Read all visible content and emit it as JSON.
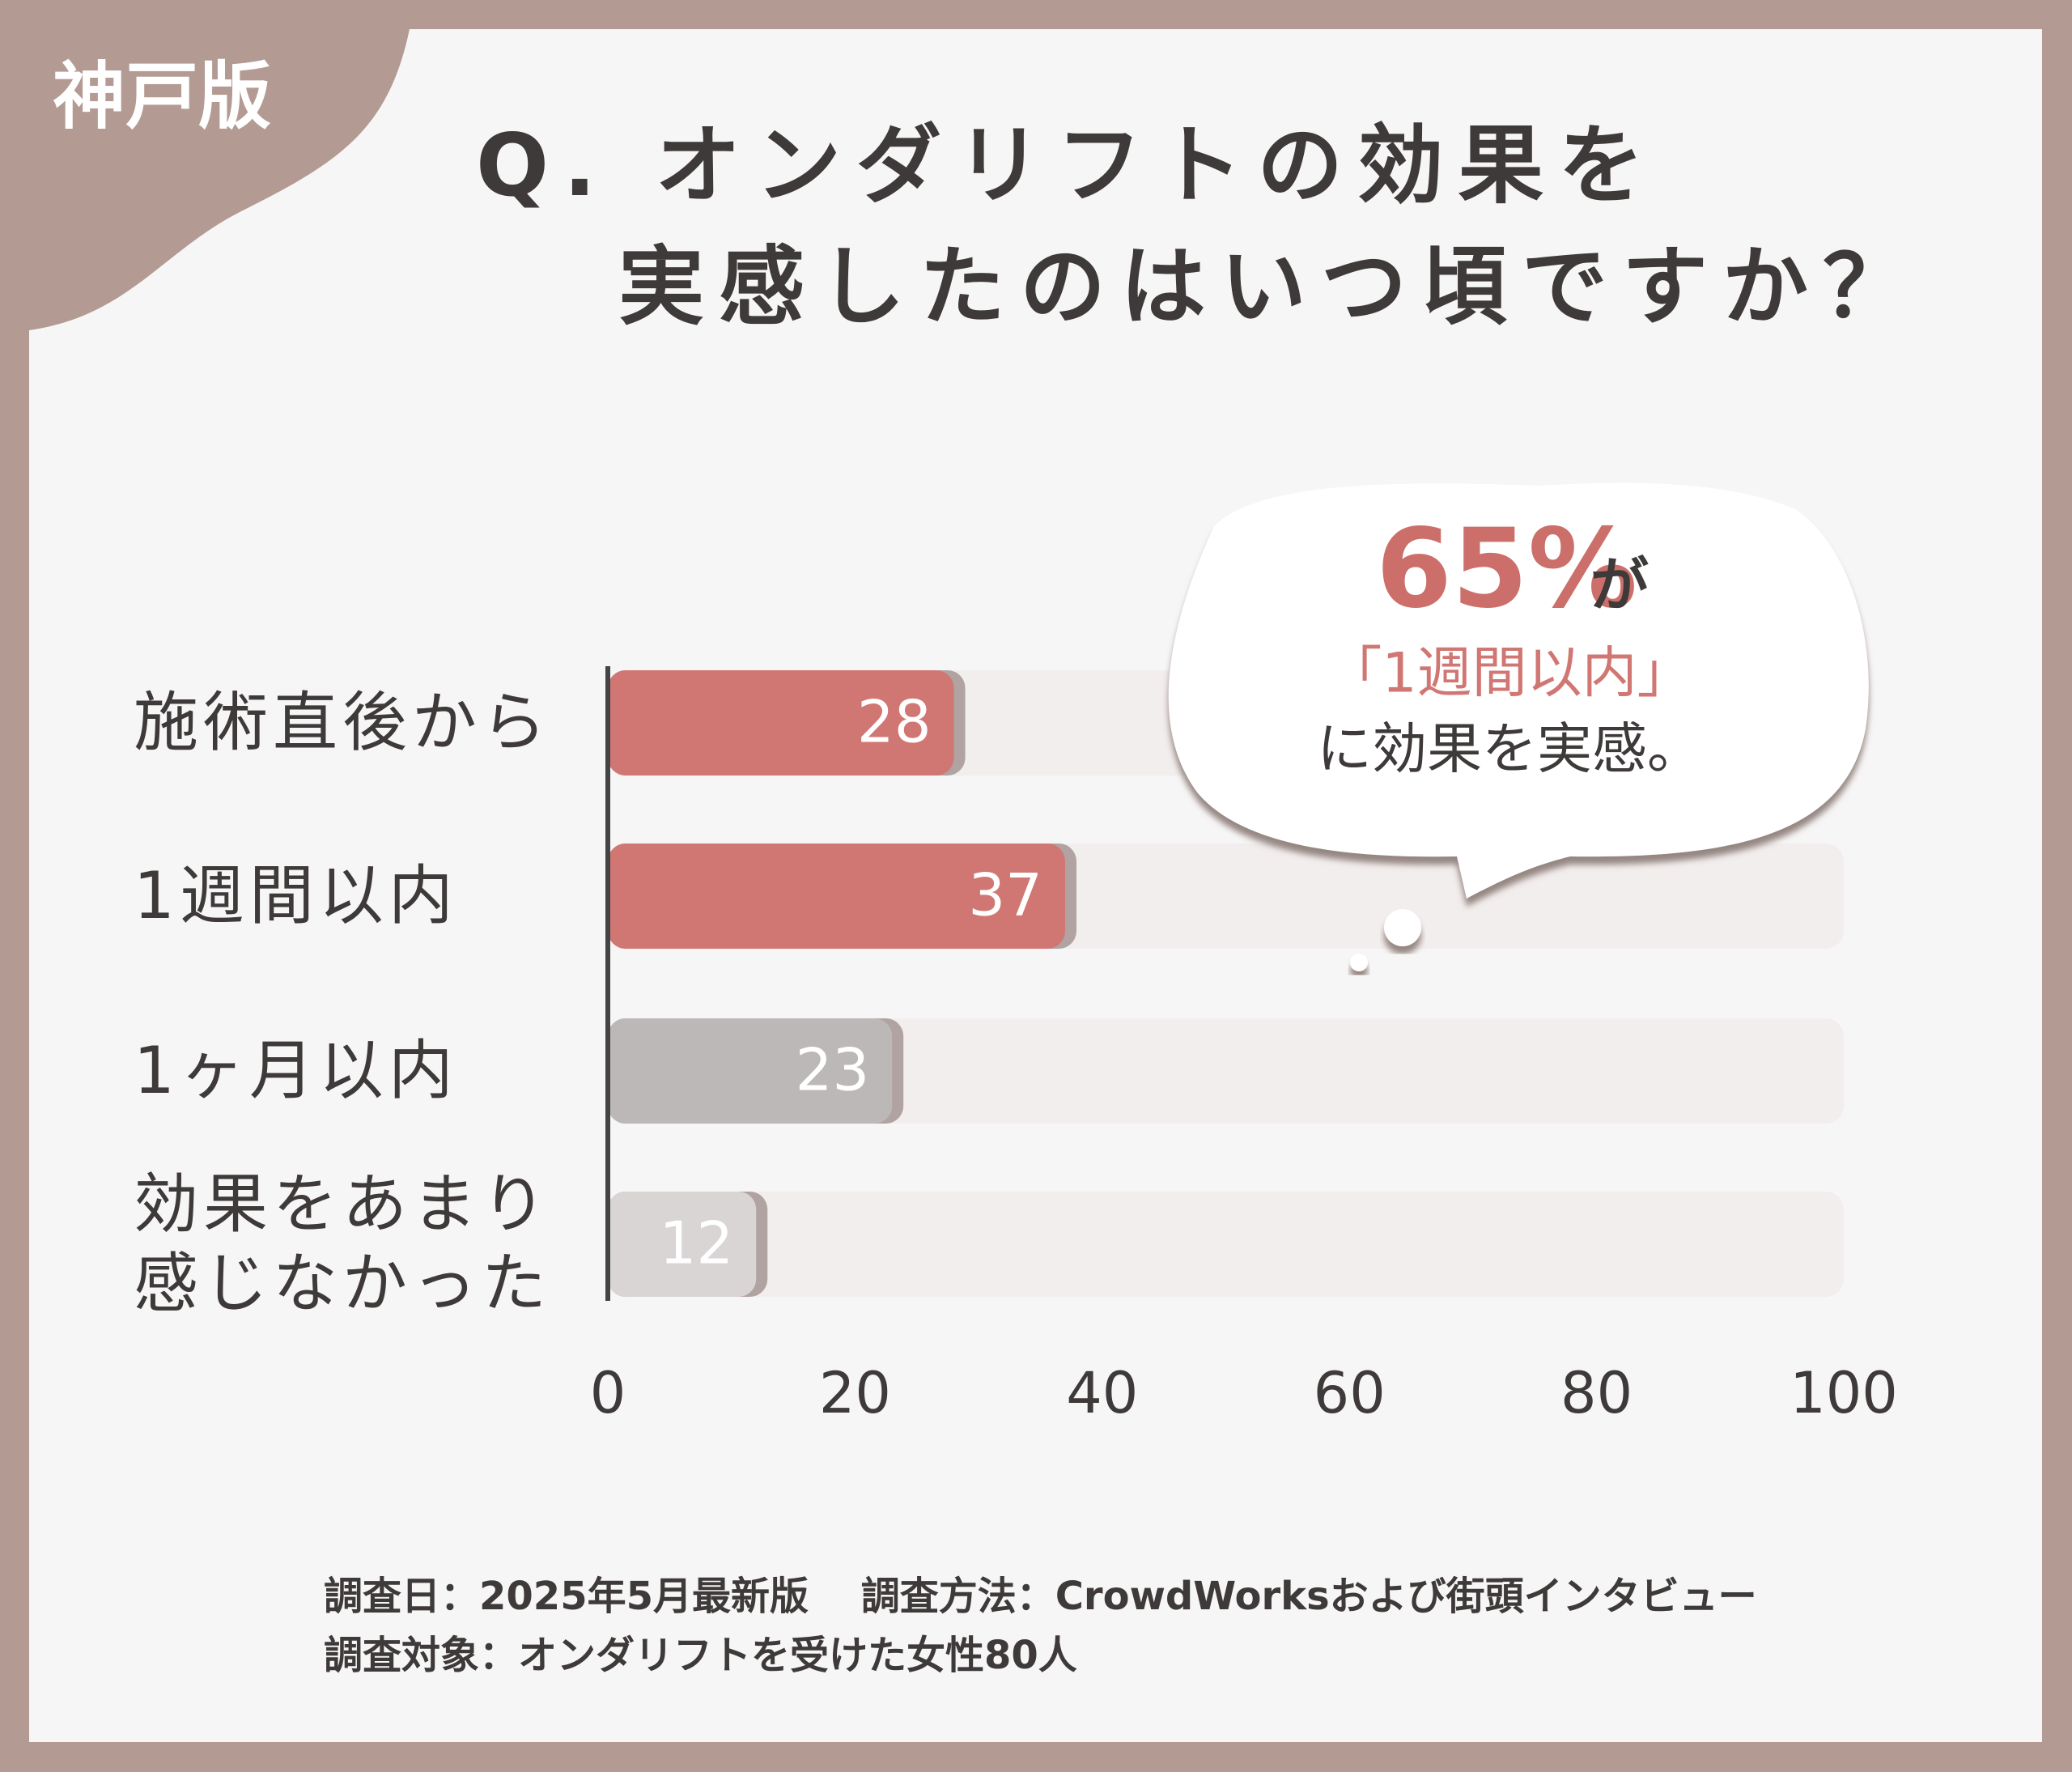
{
  "badge": "神戸版",
  "chart_data": {
    "type": "bar",
    "orientation": "horizontal",
    "title": [
      "Q. オンダリフトの効果を",
      "実感したのはいつ頃ですか？"
    ],
    "categories": [
      "施術直後から",
      "1週間以内",
      "1ヶ月以内",
      "効果をあまり感じなかった"
    ],
    "values": [
      28,
      37,
      23,
      12
    ],
    "colors": [
      "#d07773",
      "#d07773",
      "#bcb8b7",
      "#d8d5d4"
    ],
    "track_color": "#f2eeed",
    "xlim": [
      0,
      100
    ],
    "xticks": [
      0,
      20,
      40,
      60,
      80,
      100
    ],
    "annotation": {
      "highlight": "65%",
      "suffix": "が",
      "line2": "「1週間以内」",
      "line3": "に効果を実感。"
    }
  },
  "footnote": [
    "調査日：2025年5月最新版　 調査方法：CrowdWorksおよび街頭インタビュー",
    "調査対象：オンダリフトを受けた女性80人"
  ]
}
